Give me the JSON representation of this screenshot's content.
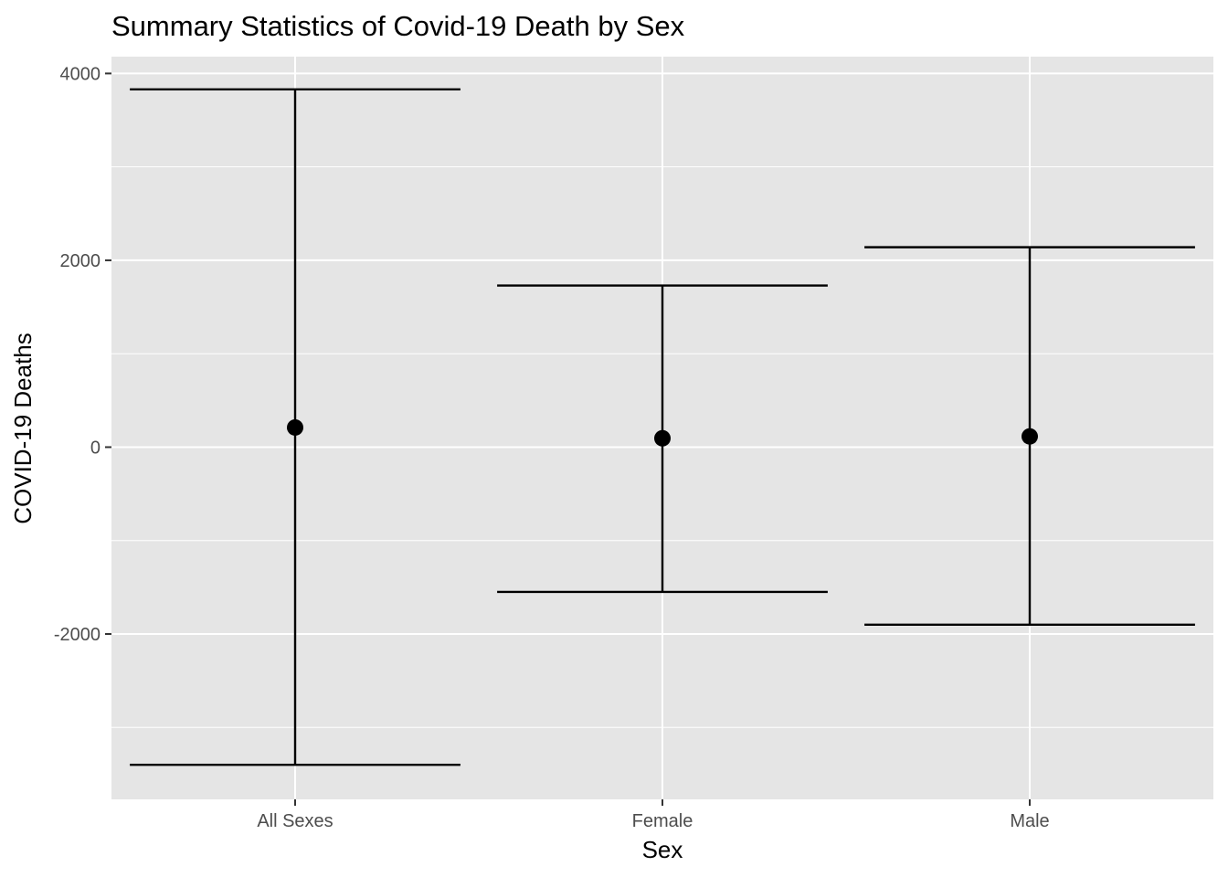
{
  "chart_data": {
    "type": "errorbar",
    "title": "Summary Statistics of Covid-19 Death by Sex",
    "xlabel": "Sex",
    "ylabel": "COVID-19 Deaths",
    "categories": [
      "All Sexes",
      "Female",
      "Male"
    ],
    "means": [
      210,
      95,
      115
    ],
    "lower": [
      -3400,
      -1550,
      -1900
    ],
    "upper": [
      3830,
      1730,
      2140
    ],
    "ylim": [
      -3770,
      4180
    ],
    "yticks": [
      -2000,
      0,
      2000,
      4000
    ],
    "ytick_labels": [
      "-2000",
      "0",
      "2000",
      "4000"
    ],
    "grid": true,
    "colors": {
      "panel_background": "#e5e5e5",
      "grid": "#ffffff",
      "marks": "#000000",
      "tick_text": "#4d4d4d"
    }
  }
}
